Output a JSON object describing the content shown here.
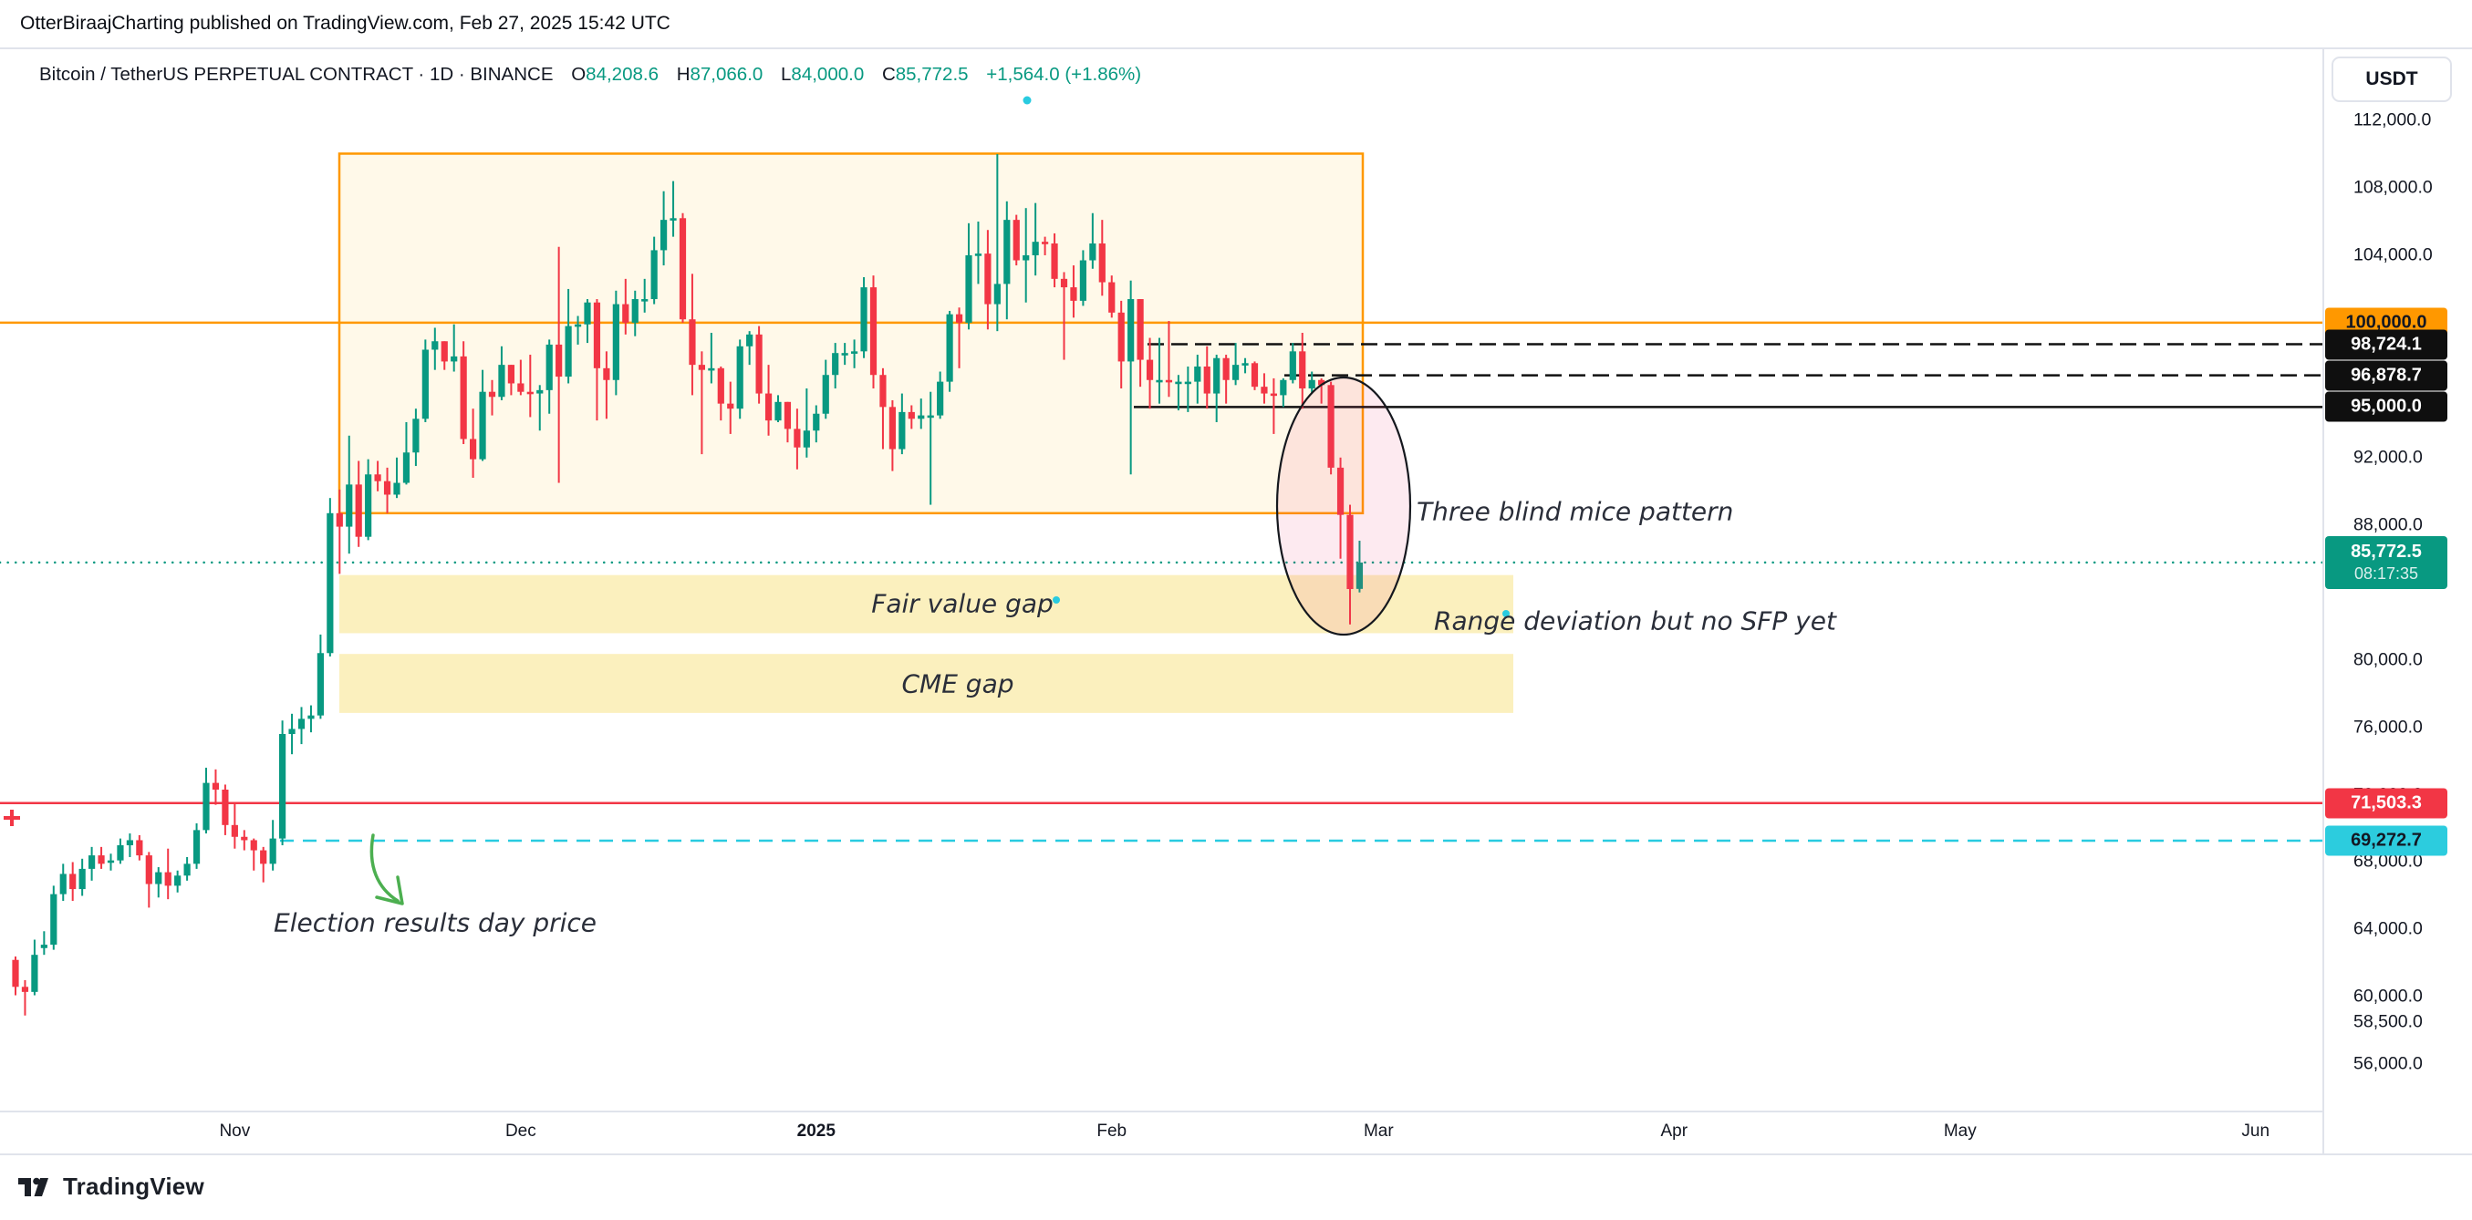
{
  "header": {
    "published_line": "OtterBiraajCharting published on TradingView.com, Feb 27, 2025 15:42 UTC"
  },
  "legend": {
    "symbol": "Bitcoin / TetherUS PERPETUAL CONTRACT · 1D · BINANCE",
    "o_label": "O",
    "o_value": "84,208.6",
    "h_label": "H",
    "h_value": "87,066.0",
    "l_label": "L",
    "l_value": "84,000.0",
    "c_label": "C",
    "c_value": "85,772.5",
    "change": "+1,564.0 (+1.86%)"
  },
  "price_axis": {
    "currency_button": "USDT",
    "ticks": [
      {
        "label": "112,000.0",
        "price": 112000
      },
      {
        "label": "108,000.0",
        "price": 108000
      },
      {
        "label": "104,000.0",
        "price": 104000
      },
      {
        "label": "92,000.0",
        "price": 92000
      },
      {
        "label": "88,000.0",
        "price": 88000
      },
      {
        "label": "80,000.0",
        "price": 80000
      },
      {
        "label": "76,000.0",
        "price": 76000
      },
      {
        "label": "72,000.0",
        "price": 72000
      },
      {
        "label": "68,000.0",
        "price": 68000
      },
      {
        "label": "64,000.0",
        "price": 64000
      },
      {
        "label": "60,000.0",
        "price": 60000
      },
      {
        "label": "58,500.0",
        "price": 58500
      },
      {
        "label": "56,000.0",
        "price": 56000
      }
    ],
    "badges": [
      {
        "label": "100,000.0",
        "price": 100000,
        "bg": "#FF9800",
        "fg": "#131722"
      },
      {
        "label": "98,724.1",
        "price": 98724.1,
        "bg": "#0f0f0f",
        "fg": "#ffffff"
      },
      {
        "label": "96,878.7",
        "price": 96878.7,
        "bg": "#0f0f0f",
        "fg": "#ffffff"
      },
      {
        "label": "95,000.0",
        "price": 95000,
        "bg": "#0f0f0f",
        "fg": "#ffffff"
      },
      {
        "label": "85,772.5",
        "price": 85772.5,
        "bg": "#089981",
        "fg": "#ffffff",
        "sub": "08:17:35"
      },
      {
        "label": "71,503.3",
        "price": 71503.3,
        "bg": "#F23645",
        "fg": "#ffffff"
      },
      {
        "label": "69,272.7",
        "price": 69272.7,
        "bg": "#2CCCDE",
        "fg": "#131722"
      }
    ]
  },
  "time_axis": {
    "labels": [
      {
        "label": "Nov",
        "day_index": 23,
        "bold": false
      },
      {
        "label": "Dec",
        "day_index": 53,
        "bold": false
      },
      {
        "label": "2025",
        "day_index": 84,
        "bold": true
      },
      {
        "label": "Feb",
        "day_index": 115,
        "bold": false
      },
      {
        "label": "Mar",
        "day_index": 143,
        "bold": false
      },
      {
        "label": "Apr",
        "day_index": 174,
        "bold": false
      },
      {
        "label": "May",
        "day_index": 204,
        "bold": false
      },
      {
        "label": "Jun",
        "day_index": 235,
        "bold": false
      }
    ]
  },
  "annotations": {
    "three_blind_mice": "Three blind mice pattern",
    "range_deviation": "Range deviation but no SFP yet",
    "election_day": "Election results day price"
  },
  "footer": {
    "brand": "TradingView"
  },
  "colors": {
    "up": "#089981",
    "down": "#F23645",
    "orange": "#FF9800",
    "teal_dotted": "#089981",
    "cyan": "#29CBE0",
    "red_line": "#F23645",
    "black_line": "#111111",
    "band_fill": "#FBF0BE",
    "box_fill": "rgba(255,214,102,0.14)",
    "ellipse_fill": "rgba(236,64,122,0.11)",
    "annotation_text": "#2a2e39"
  },
  "chart_data": {
    "type": "candlestick",
    "title": "Bitcoin / TetherUS PERPETUAL CONTRACT",
    "interval": "1D",
    "exchange": "BINANCE",
    "currency": "USDT",
    "last_bar": {
      "open": 84208.6,
      "high": 87066.0,
      "low": 84000.0,
      "close": 85772.5,
      "change": "+1,564.0 (+1.86%)",
      "countdown": "08:17:35"
    },
    "start_date": "2024-10-09",
    "ylim": [
      53000,
      116500
    ],
    "candles": [
      [
        62200,
        62400,
        60100,
        60600
      ],
      [
        60600,
        61000,
        58900,
        60300
      ],
      [
        60300,
        63400,
        60100,
        62500
      ],
      [
        62900,
        63900,
        62500,
        63100
      ],
      [
        63100,
        66600,
        62800,
        66100
      ],
      [
        66100,
        67900,
        65700,
        67300
      ],
      [
        67300,
        68000,
        65700,
        66400
      ],
      [
        66400,
        68200,
        66000,
        67600
      ],
      [
        67600,
        68900,
        66900,
        68400
      ],
      [
        68400,
        68900,
        67600,
        67900
      ],
      [
        68000,
        68500,
        67500,
        68100
      ],
      [
        68100,
        69400,
        67900,
        69000
      ],
      [
        69000,
        69700,
        68300,
        69300
      ],
      [
        69300,
        69600,
        68100,
        68400
      ],
      [
        68400,
        68600,
        65300,
        66700
      ],
      [
        66700,
        67700,
        65900,
        67400
      ],
      [
        67400,
        68800,
        65800,
        66600
      ],
      [
        66600,
        67500,
        66200,
        67200
      ],
      [
        67200,
        68300,
        66900,
        67900
      ],
      [
        67900,
        70300,
        67600,
        69900
      ],
      [
        69900,
        73600,
        69700,
        72700
      ],
      [
        72700,
        73500,
        71400,
        72300
      ],
      [
        72300,
        72600,
        69600,
        70200
      ],
      [
        70200,
        71500,
        68800,
        69500
      ],
      [
        69500,
        69900,
        68700,
        69300
      ],
      [
        69300,
        69400,
        67500,
        68700
      ],
      [
        68700,
        68900,
        66800,
        67900
      ],
      [
        67900,
        70500,
        67500,
        69400
      ],
      [
        69400,
        76400,
        69000,
        75600
      ],
      [
        75600,
        76800,
        74400,
        75900
      ],
      [
        75900,
        77200,
        75000,
        76500
      ],
      [
        76500,
        77300,
        75700,
        76700
      ],
      [
        76700,
        81500,
        76500,
        80400
      ],
      [
        80400,
        89600,
        80200,
        88700
      ],
      [
        88700,
        90100,
        85100,
        87900
      ],
      [
        87900,
        93300,
        86300,
        90400
      ],
      [
        90400,
        91800,
        86700,
        87300
      ],
      [
        87300,
        91900,
        87100,
        91000
      ],
      [
        91000,
        91800,
        90000,
        90600
      ],
      [
        90600,
        91400,
        88700,
        89800
      ],
      [
        89800,
        92000,
        89600,
        90500
      ],
      [
        90500,
        94100,
        90400,
        92300
      ],
      [
        92300,
        94900,
        91500,
        94300
      ],
      [
        94300,
        99000,
        94100,
        98400
      ],
      [
        98400,
        99700,
        97200,
        98900
      ],
      [
        98900,
        98900,
        97200,
        97700
      ],
      [
        97700,
        99900,
        97100,
        98000
      ],
      [
        98000,
        98900,
        92800,
        93100
      ],
      [
        93100,
        94900,
        90800,
        91900
      ],
      [
        91900,
        97200,
        91800,
        95900
      ],
      [
        95900,
        96600,
        94500,
        95600
      ],
      [
        95600,
        98600,
        95400,
        97500
      ],
      [
        97500,
        97500,
        95700,
        96400
      ],
      [
        96400,
        97800,
        95700,
        95900
      ],
      [
        95900,
        98100,
        94400,
        95800
      ],
      [
        95800,
        96300,
        93600,
        96000
      ],
      [
        96000,
        99000,
        94600,
        98700
      ],
      [
        98700,
        104500,
        90500,
        96800
      ],
      [
        96800,
        102000,
        96400,
        99800
      ],
      [
        99800,
        100400,
        98700,
        99900
      ],
      [
        99900,
        101400,
        98800,
        101200
      ],
      [
        101200,
        101400,
        94200,
        97300
      ],
      [
        97300,
        98300,
        94300,
        96600
      ],
      [
        96600,
        101900,
        95700,
        101100
      ],
      [
        101100,
        102600,
        99300,
        100000
      ],
      [
        100000,
        101900,
        99200,
        101400
      ],
      [
        101400,
        102600,
        100600,
        101400
      ],
      [
        101400,
        105100,
        101100,
        104300
      ],
      [
        104300,
        107800,
        103400,
        106100
      ],
      [
        106100,
        108400,
        105100,
        106200
      ],
      [
        106200,
        106500,
        100000,
        100200
      ],
      [
        100200,
        102900,
        95700,
        97500
      ],
      [
        97500,
        98300,
        92200,
        97200
      ],
      [
        97200,
        99400,
        96400,
        97300
      ],
      [
        97300,
        97400,
        94200,
        95200
      ],
      [
        95200,
        96500,
        93400,
        94900
      ],
      [
        94900,
        99000,
        94300,
        98600
      ],
      [
        98600,
        99500,
        97500,
        99300
      ],
      [
        99300,
        99800,
        95200,
        95800
      ],
      [
        95800,
        97500,
        93300,
        94200
      ],
      [
        94200,
        95700,
        94100,
        95300
      ],
      [
        95300,
        95300,
        92900,
        93700
      ],
      [
        93700,
        94900,
        91300,
        92600
      ],
      [
        92600,
        96100,
        92000,
        93600
      ],
      [
        93600,
        95100,
        92900,
        94600
      ],
      [
        94600,
        97800,
        94300,
        96900
      ],
      [
        96900,
        98800,
        96100,
        98200
      ],
      [
        98200,
        98800,
        97500,
        98200
      ],
      [
        98200,
        99000,
        97300,
        98300
      ],
      [
        98300,
        102700,
        97900,
        102100
      ],
      [
        102100,
        102800,
        96100,
        96900
      ],
      [
        96900,
        97300,
        92500,
        95000
      ],
      [
        95000,
        95400,
        91200,
        92500
      ],
      [
        92500,
        95800,
        92200,
        94700
      ],
      [
        94700,
        95100,
        93700,
        94300
      ],
      [
        94300,
        95500,
        93700,
        94500
      ],
      [
        94500,
        95900,
        89200,
        94500
      ],
      [
        94500,
        97100,
        94300,
        96500
      ],
      [
        96500,
        100700,
        95900,
        100500
      ],
      [
        100500,
        100900,
        97300,
        100000
      ],
      [
        100000,
        105900,
        99600,
        104000
      ],
      [
        104000,
        106000,
        102300,
        104100
      ],
      [
        104100,
        105500,
        99600,
        101100
      ],
      [
        101100,
        110000,
        99500,
        102300
      ],
      [
        102300,
        107200,
        100200,
        106100
      ],
      [
        106100,
        106400,
        103400,
        103700
      ],
      [
        103700,
        106800,
        101200,
        104000
      ],
      [
        104000,
        107100,
        102800,
        104800
      ],
      [
        104800,
        105100,
        104000,
        104700
      ],
      [
        104700,
        105300,
        102100,
        102600
      ],
      [
        102600,
        103000,
        97800,
        102100
      ],
      [
        102100,
        103400,
        100300,
        101300
      ],
      [
        101300,
        104300,
        101000,
        103700
      ],
      [
        103700,
        106500,
        103200,
        104700
      ],
      [
        104700,
        106100,
        101600,
        102400
      ],
      [
        102400,
        102800,
        100300,
        100600
      ],
      [
        100600,
        101300,
        96100,
        97700
      ],
      [
        97700,
        102500,
        91000,
        101400
      ],
      [
        101400,
        101400,
        96200,
        97800
      ],
      [
        97800,
        99100,
        94900,
        96600
      ],
      [
        96600,
        99100,
        95200,
        96600
      ],
      [
        96600,
        100100,
        95600,
        96500
      ],
      [
        96500,
        96900,
        94800,
        96500
      ],
      [
        96500,
        97400,
        94700,
        96500
      ],
      [
        96500,
        98100,
        95200,
        97400
      ],
      [
        97400,
        98600,
        94900,
        95800
      ],
      [
        95800,
        98100,
        94100,
        97900
      ],
      [
        97900,
        98100,
        95200,
        96600
      ],
      [
        96600,
        98800,
        96300,
        97500
      ],
      [
        97500,
        97900,
        97000,
        97600
      ],
      [
        97600,
        97700,
        96000,
        96200
      ],
      [
        96200,
        97000,
        95200,
        95800
      ],
      [
        95800,
        96700,
        93400,
        95700
      ],
      [
        95700,
        96700,
        95000,
        96600
      ],
      [
        96600,
        98800,
        96400,
        98300
      ],
      [
        98300,
        99400,
        94900,
        96100
      ],
      [
        96100,
        97100,
        95800,
        96600
      ],
      [
        96600,
        96700,
        95200,
        96300
      ],
      [
        96300,
        96500,
        91000,
        91400
      ],
      [
        91400,
        92000,
        86000,
        88600
      ],
      [
        88600,
        89200,
        82100,
        84200
      ],
      [
        84208.6,
        87066,
        84000,
        85772.5
      ]
    ],
    "levels": [
      {
        "name": "level-100000",
        "price": 100000,
        "color": "#FF9800",
        "style": "solid"
      },
      {
        "name": "level-98724",
        "price": 98724.1,
        "color": "#111111",
        "style": "dashed"
      },
      {
        "name": "level-96878",
        "price": 96878.7,
        "color": "#111111",
        "style": "dashed"
      },
      {
        "name": "level-95000",
        "price": 95000,
        "color": "#111111",
        "style": "solid"
      },
      {
        "name": "last-price",
        "price": 85772.5,
        "color": "#089981",
        "style": "dotted"
      },
      {
        "name": "level-71503",
        "price": 71503.3,
        "color": "#F23645",
        "style": "solid"
      },
      {
        "name": "election-price",
        "price": 69272.7,
        "color": "#29CBE0",
        "style": "longdash"
      }
    ],
    "zones": [
      {
        "name": "fair-value-gap",
        "label": "Fair value gap",
        "top_price": 85030,
        "bottom_price": 81580
      },
      {
        "name": "cme-gap",
        "label": "CME gap",
        "top_price": 80350,
        "bottom_price": 76850
      }
    ],
    "range_box": {
      "top_price": 110030,
      "bottom_price": 88700
    },
    "legend_note": "grid off, white background, log-free linear scale"
  }
}
